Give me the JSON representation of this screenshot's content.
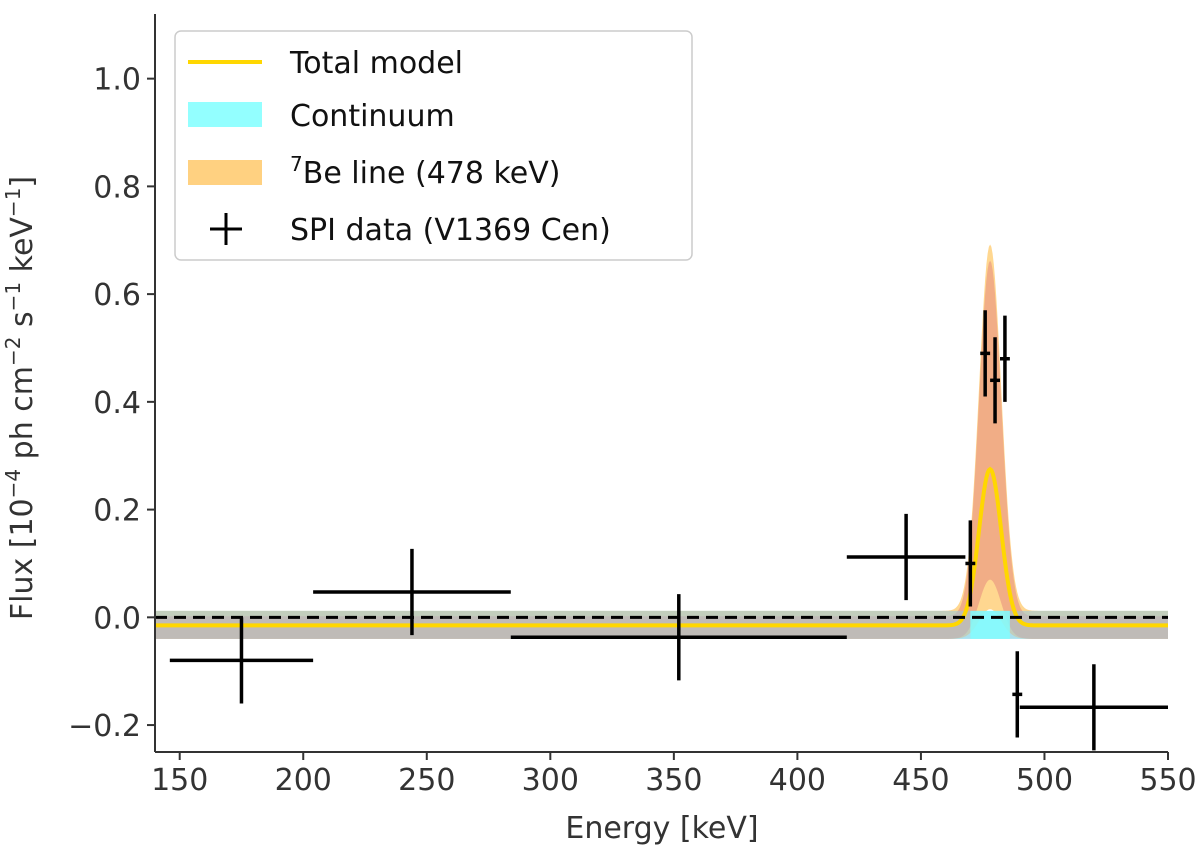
{
  "chart_data": {
    "type": "line",
    "title": "",
    "xlabel": "Energy [keV]",
    "ylabel": {
      "prefix": "Flux [10",
      "exp1": "−4",
      "mid1": " ph cm",
      "exp2": "−2",
      "mid2": " s",
      "exp3": "−1",
      "mid3": " keV",
      "exp4": "−1",
      "suffix": "]"
    },
    "xlim": [
      140,
      550
    ],
    "ylim": [
      -0.25,
      1.12
    ],
    "x_ticks": [
      150,
      200,
      250,
      300,
      350,
      400,
      450,
      500,
      550
    ],
    "x_tick_labels": [
      "150",
      "200",
      "250",
      "300",
      "350",
      "400",
      "450",
      "500",
      "550"
    ],
    "y_ticks": [
      -0.2,
      0.0,
      0.2,
      0.4,
      0.6,
      0.8,
      1.0
    ],
    "y_tick_labels": [
      "−0.2",
      "0.0",
      "0.2",
      "0.4",
      "0.6",
      "0.8",
      "1.0"
    ],
    "legend_position": "top-left",
    "legend": {
      "total_model": "Total model",
      "continuum": "Continuum",
      "be_line": "Be line (478 keV)",
      "be_line_superscript": "7",
      "spi_data": "SPI data (V1369 Cen)"
    },
    "colors": {
      "total_model": "#ffd700",
      "continuum_band": "#80ffff",
      "be_band": "#ffc96b",
      "be_inner_band": "#e07a7a",
      "overlap_band": "#9ec6e0",
      "data": "#000000",
      "zero_line": "#000000"
    },
    "continuum": {
      "center": -0.015,
      "band_lower": -0.04,
      "band_upper": 0.012
    },
    "be_line": {
      "center_keV": 478,
      "sigma_keV": 4.5,
      "median_peak": 0.29,
      "outer_peak": 0.68,
      "inner_peak": 0.66,
      "lower_peak": 0.11
    },
    "zero_line": 0.0,
    "series": [
      {
        "name": "SPI data (V1369 Cen)",
        "points": [
          {
            "x": 175,
            "xerr": [
              29,
              29
            ],
            "y": -0.08,
            "yerr": [
              0.08,
              0.08
            ]
          },
          {
            "x": 244,
            "xerr": [
              40,
              40
            ],
            "y": 0.047,
            "yerr": [
              0.08,
              0.08
            ]
          },
          {
            "x": 352,
            "xerr": [
              68,
              68
            ],
            "y": -0.037,
            "yerr": [
              0.08,
              0.08
            ]
          },
          {
            "x": 444,
            "xerr": [
              24,
              24
            ],
            "y": 0.112,
            "yerr": [
              0.08,
              0.08
            ]
          },
          {
            "x": 470,
            "xerr": [
              2,
              2
            ],
            "y": 0.1,
            "yerr": [
              0.08,
              0.08
            ]
          },
          {
            "x": 476,
            "xerr": [
              2,
              2
            ],
            "y": 0.49,
            "yerr": [
              0.08,
              0.08
            ]
          },
          {
            "x": 480,
            "xerr": [
              2,
              2
            ],
            "y": 0.44,
            "yerr": [
              0.08,
              0.08
            ]
          },
          {
            "x": 484,
            "xerr": [
              2,
              2
            ],
            "y": 0.48,
            "yerr": [
              0.08,
              0.08
            ]
          },
          {
            "x": 489,
            "xerr": [
              2,
              2
            ],
            "y": -0.143,
            "yerr": [
              0.08,
              0.08
            ]
          },
          {
            "x": 520,
            "xerr": [
              30,
              30
            ],
            "y": -0.167,
            "yerr": [
              0.08,
              0.08
            ]
          }
        ]
      }
    ]
  }
}
